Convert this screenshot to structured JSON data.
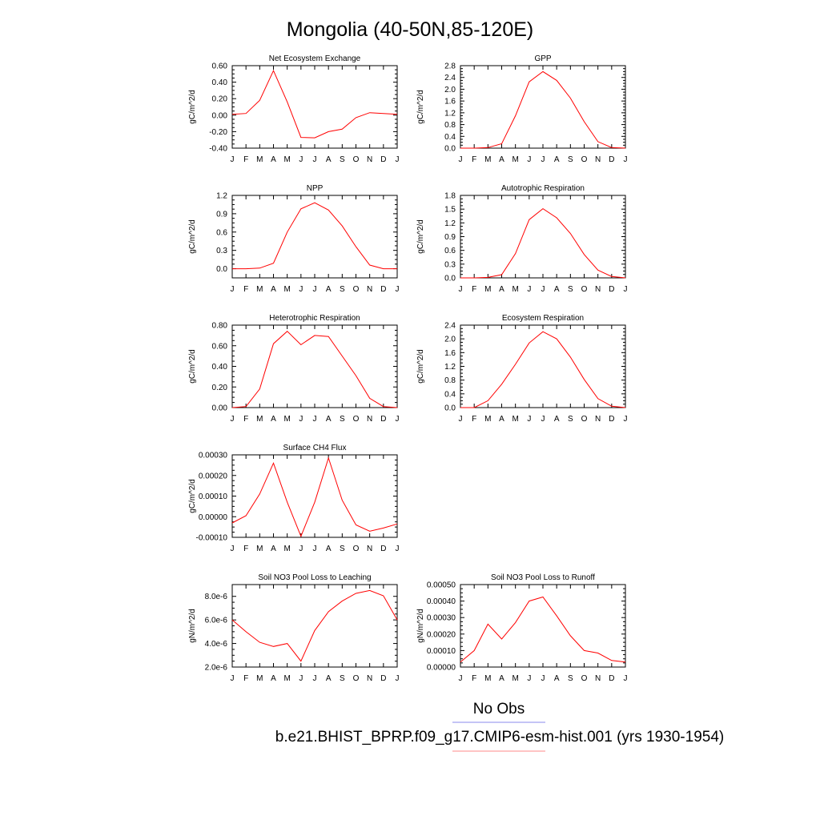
{
  "title": "Mongolia (40-50N,85-120E)",
  "months": [
    "J",
    "F",
    "M",
    "A",
    "M",
    "J",
    "J",
    "A",
    "S",
    "O",
    "N",
    "D",
    "J"
  ],
  "legend": {
    "obs_label": "No Obs",
    "obs_color": "#8888ee",
    "model_label": "b.e21.BHIST_BPRP.f09_g17.CMIP6-esm-hist.001 (yrs 1930-1954)",
    "model_color": "#ff8888"
  },
  "line_color": "#ff0000",
  "chart_data": [
    {
      "type": "line",
      "title": "Net Ecosystem Exchange",
      "ylabel": "gC/m^2/d",
      "ylim": [
        -0.4,
        0.6
      ],
      "yticks": [
        -0.4,
        -0.2,
        0.0,
        0.2,
        0.4,
        0.6
      ],
      "ytick_labels": [
        "-0.40",
        "-0.20",
        "0.00",
        "0.20",
        "0.40",
        "0.60"
      ],
      "values": [
        0.01,
        0.02,
        0.18,
        0.54,
        0.16,
        -0.27,
        -0.275,
        -0.2,
        -0.17,
        -0.03,
        0.03,
        0.02,
        0.01
      ]
    },
    {
      "type": "line",
      "title": "GPP",
      "ylabel": "gC/m^2/d",
      "ylim": [
        0,
        2.8
      ],
      "yticks": [
        0,
        0.4,
        0.8,
        1.2,
        1.6,
        2.0,
        2.4,
        2.8
      ],
      "ytick_labels": [
        "0.0",
        "0.4",
        "0.8",
        "1.2",
        "1.6",
        "2.0",
        "2.4",
        "2.8"
      ],
      "values": [
        0.0,
        0.0,
        0.02,
        0.15,
        1.1,
        2.25,
        2.6,
        2.3,
        1.7,
        0.9,
        0.22,
        0.02,
        0.0
      ]
    },
    {
      "type": "line",
      "title": "NPP",
      "ylabel": "gC/m^2/d",
      "ylim": [
        -0.15,
        1.2
      ],
      "yticks": [
        0,
        0.3,
        0.6,
        0.9,
        1.2
      ],
      "ytick_labels": [
        "0.0",
        "0.3",
        "0.6",
        "0.9",
        "1.2"
      ],
      "values": [
        0.0,
        0.0,
        0.01,
        0.09,
        0.6,
        0.98,
        1.08,
        0.96,
        0.7,
        0.36,
        0.06,
        0.0,
        0.0
      ]
    },
    {
      "type": "line",
      "title": "Autotrophic Respiration",
      "ylabel": "gC/m^2/d",
      "ylim": [
        0,
        1.8
      ],
      "yticks": [
        0,
        0.3,
        0.6,
        0.9,
        1.2,
        1.5,
        1.8
      ],
      "ytick_labels": [
        "0.0",
        "0.3",
        "0.6",
        "0.9",
        "1.2",
        "1.5",
        "1.8"
      ],
      "values": [
        0.0,
        0.0,
        0.01,
        0.07,
        0.53,
        1.27,
        1.51,
        1.31,
        0.97,
        0.51,
        0.17,
        0.03,
        0.0
      ]
    },
    {
      "type": "line",
      "title": "Heterotrophic Respiration",
      "ylabel": "gC/m^2/d",
      "ylim": [
        0,
        0.8
      ],
      "yticks": [
        0,
        0.2,
        0.4,
        0.6,
        0.8
      ],
      "ytick_labels": [
        "0.00",
        "0.20",
        "0.40",
        "0.60",
        "0.80"
      ],
      "values": [
        0.0,
        0.01,
        0.18,
        0.62,
        0.74,
        0.61,
        0.7,
        0.69,
        0.5,
        0.31,
        0.09,
        0.01,
        0.0
      ]
    },
    {
      "type": "line",
      "title": "Ecosystem Respiration",
      "ylabel": "gC/m^2/d",
      "ylim": [
        0,
        2.4
      ],
      "yticks": [
        0,
        0.4,
        0.8,
        1.2,
        1.6,
        2.0,
        2.4
      ],
      "ytick_labels": [
        "0.0",
        "0.4",
        "0.8",
        "1.2",
        "1.6",
        "2.0",
        "2.4"
      ],
      "values": [
        0.0,
        0.0,
        0.2,
        0.68,
        1.26,
        1.88,
        2.21,
        2.0,
        1.47,
        0.82,
        0.26,
        0.04,
        0.0
      ]
    },
    {
      "type": "line",
      "title": "Surface CH4 Flux",
      "ylabel": "gC/m^2/d",
      "ylim": [
        -0.0001,
        0.0003
      ],
      "yticks": [
        -0.0001,
        0.0,
        0.0001,
        0.0002,
        0.0003
      ],
      "ytick_labels": [
        "-0.00010",
        "0.00000",
        "0.00010",
        "0.00020",
        "0.00030"
      ],
      "values": [
        -3e-05,
        5e-06,
        0.00011,
        0.00026,
        7e-05,
        -9.5e-05,
        7e-05,
        0.000285,
        8e-05,
        -4e-05,
        -7e-05,
        -5.5e-05,
        -3.5e-05
      ]
    },
    {
      "type": "line",
      "title": "Soil NO3 Pool Loss to Leaching",
      "ylabel": "gN/m^2/d",
      "ylim": [
        2e-06,
        9e-06
      ],
      "yticks": [
        2e-06,
        4e-06,
        6e-06,
        8e-06
      ],
      "ytick_labels": [
        "2.0e-6",
        "4.0e-6",
        "6.0e-6",
        "8.0e-6"
      ],
      "values": [
        6e-06,
        5e-06,
        4.1e-06,
        3.75e-06,
        4e-06,
        2.5e-06,
        5.1e-06,
        6.7e-06,
        7.6e-06,
        8.25e-06,
        8.5e-06,
        8.05e-06,
        6e-06
      ]
    },
    {
      "type": "line",
      "title": "Soil NO3 Pool Loss to Runoff",
      "ylabel": "gN/m^2/d",
      "ylim": [
        0,
        0.0005
      ],
      "yticks": [
        0,
        0.0001,
        0.0002,
        0.0003,
        0.0004,
        0.0005
      ],
      "ytick_labels": [
        "0.00000",
        "0.00010",
        "0.00020",
        "0.00030",
        "0.00040",
        "0.00050"
      ],
      "values": [
        3e-05,
        0.0001,
        0.00026,
        0.00017,
        0.00027,
        0.0004,
        0.000425,
        0.00031,
        0.00019,
        0.0001,
        8.5e-05,
        4e-05,
        3e-05
      ]
    }
  ]
}
